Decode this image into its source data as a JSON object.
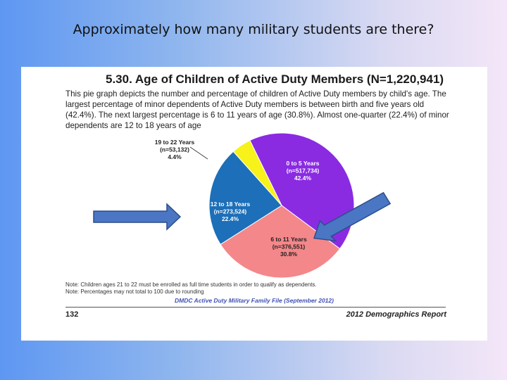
{
  "question": "Approximately how many military students are there?",
  "slide": {
    "section_title": "5.30. Age of Children of Active Duty Members (N=1,220,941)",
    "description": "This pie graph depicts the number and percentage of children of Active Duty members by child's age. The largest percentage of minor dependents of Active Duty members is between birth and five years old (42.4%). The next largest percentage is 6 to 11 years of age (30.8%). Almost one-quarter (22.4%) of minor dependents are 12 to 18 years of age",
    "notes": [
      "Note:  Children ages 21 to 22 must be enrolled as full time students in order to qualify as dependents.",
      "Note:  Percentages may not total to 100 due to rounding"
    ],
    "source": "DMDC Active Duty Military Family File (September 2012)",
    "page_number": "132",
    "report_name": "2012 Demographics Report"
  },
  "chart_data": {
    "type": "pie",
    "title": "5.30. Age of Children of Active Duty Members (N=1,220,941)",
    "total": 1220941,
    "slices": [
      {
        "label": "0 to 5 Years",
        "count_label": "(n=517,734)",
        "percent_label": "42.4%",
        "value": 42.4,
        "color": "#8a2be2",
        "text_color": "#ffffff"
      },
      {
        "label": "6 to 11 Years",
        "count_label": "(n=376,551)",
        "percent_label": "30.8%",
        "value": 30.8,
        "color": "#f4878a",
        "text_color": "#222222"
      },
      {
        "label": "12 to 18 Years",
        "count_label": "(n=273,524)",
        "percent_label": "22.4%",
        "value": 22.4,
        "color": "#1c6fb8",
        "text_color": "#ffffff"
      },
      {
        "label": "19 to 22 Years",
        "count_label": "(n=53,132)",
        "percent_label": "4.4%",
        "value": 4.4,
        "color": "#f6f21a",
        "text_color": "#222222"
      }
    ]
  },
  "annotations": {
    "arrow_color": "#4a76c4"
  }
}
